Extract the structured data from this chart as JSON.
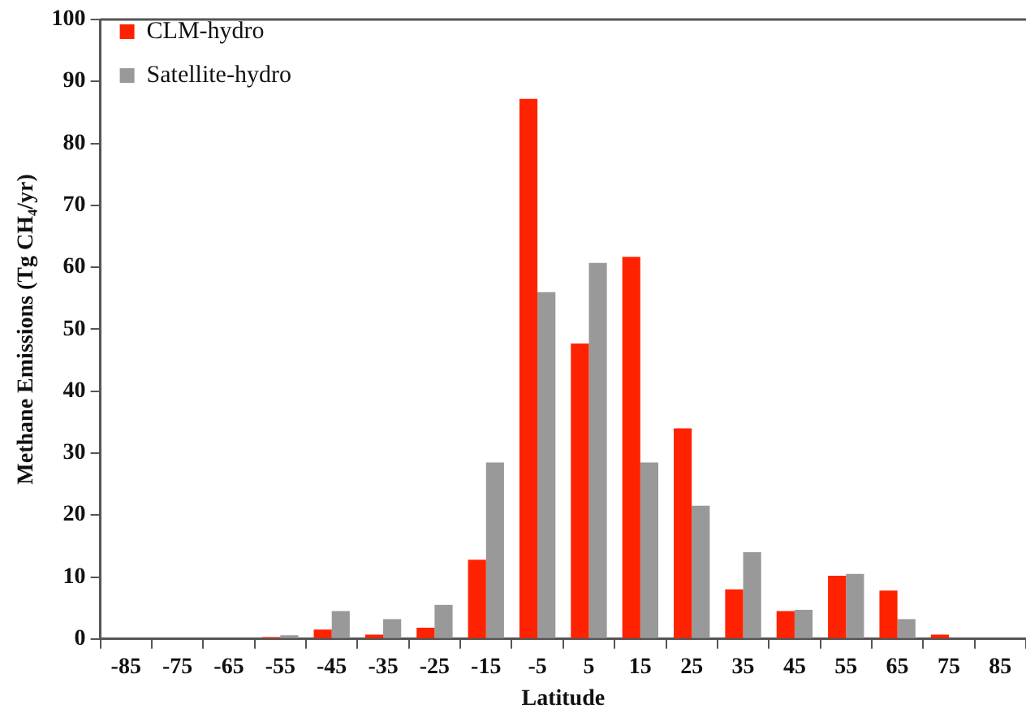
{
  "chart_data": {
    "type": "bar",
    "xlabel": "Latitude",
    "ylabel": "Methane Emissions (Tg CH₄/yr)",
    "categories": [
      "-85",
      "-75",
      "-65",
      "-55",
      "-45",
      "-35",
      "-25",
      "-15",
      "-5",
      "5",
      "15",
      "25",
      "35",
      "45",
      "55",
      "65",
      "75",
      "85"
    ],
    "series": [
      {
        "name": "CLM-hydro",
        "color": "#ff2200",
        "values": [
          0,
          0,
          0,
          0.3,
          1.5,
          0.7,
          1.8,
          12.8,
          87.2,
          47.7,
          61.7,
          34,
          8,
          4.5,
          10.2,
          7.8,
          0.7,
          0
        ]
      },
      {
        "name": "Satellite-hydro",
        "color": "#999999",
        "values": [
          0,
          0,
          0,
          0.6,
          4.5,
          3.2,
          5.5,
          28.5,
          56,
          60.7,
          28.5,
          21.5,
          14,
          4.7,
          10.5,
          3.2,
          0,
          0
        ]
      }
    ],
    "ylim": [
      0,
      100
    ],
    "yticks": [
      0,
      10,
      20,
      30,
      40,
      50,
      60,
      70,
      80,
      90,
      100
    ],
    "grid": false,
    "legend": "top left"
  }
}
